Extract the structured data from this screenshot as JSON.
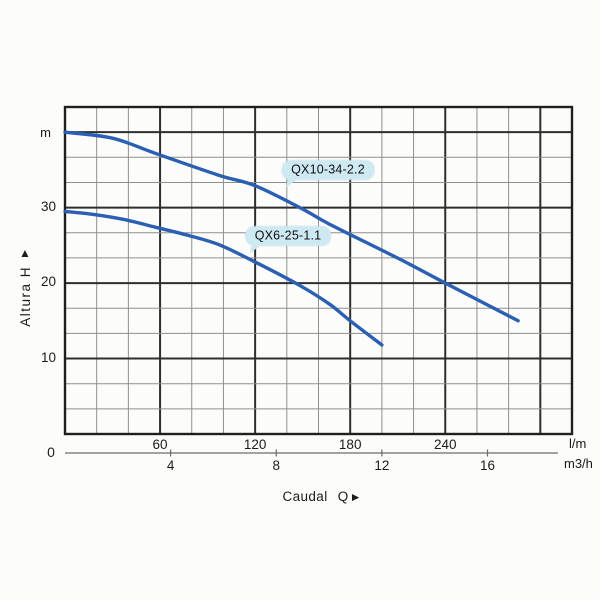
{
  "page": {
    "background": "#fcfcfa"
  },
  "icons": {
    "up_triangle": "▲",
    "right_triangle": "►"
  },
  "bubble_style": {
    "fill": "#cfe9f3",
    "text_color": "#101010"
  },
  "chart_data": {
    "type": "line",
    "title": "",
    "x_axis": {
      "title": "Caudal Q",
      "primary_unit": "l/m",
      "primary_ticks": [
        60,
        120,
        180,
        240
      ],
      "secondary_unit": "m3/h",
      "secondary_ticks": [
        4,
        8,
        12,
        16
      ],
      "range_lm": [
        0,
        320
      ],
      "minor_step_lm": 20,
      "major_step_lm": 60,
      "lm_per_m3h": 16.6667
    },
    "y_axis": {
      "title": "Altura H",
      "unit_label": "m",
      "ticks": [
        30,
        20,
        10
      ],
      "range_m": [
        0,
        43.333
      ],
      "minor_step_m": 3.3333,
      "major_step_m": 10
    },
    "origin_label": "0",
    "grid": {
      "minor_color": "#8f8f8c",
      "major_color": "#2e2e2c",
      "border_color": "#1f1f1d",
      "scale_line_color": "#6b6b69"
    },
    "series": [
      {
        "name": "QX10-34-2.2",
        "color": "#2a5fb4",
        "points_lm_m": [
          [
            0,
            40
          ],
          [
            30,
            39.2
          ],
          [
            57,
            37.2
          ],
          [
            97,
            34.3
          ],
          [
            120,
            32.9
          ],
          [
            150,
            29.8
          ],
          [
            167,
            27.8
          ],
          [
            211,
            23.2
          ],
          [
            240,
            20
          ],
          [
            286,
            15
          ]
        ]
      },
      {
        "name": "QX6-25-1.1",
        "color": "#2a5fb4",
        "points_lm_m": [
          [
            0,
            29.5
          ],
          [
            18,
            29.1
          ],
          [
            38,
            28.4
          ],
          [
            57,
            27.4
          ],
          [
            78,
            26.3
          ],
          [
            97,
            25.1
          ],
          [
            119,
            22.9
          ],
          [
            148,
            19.7
          ],
          [
            167,
            17.2
          ],
          [
            180,
            15
          ],
          [
            200,
            11.8
          ]
        ]
      }
    ],
    "legend_position": "labels-on-curves"
  }
}
